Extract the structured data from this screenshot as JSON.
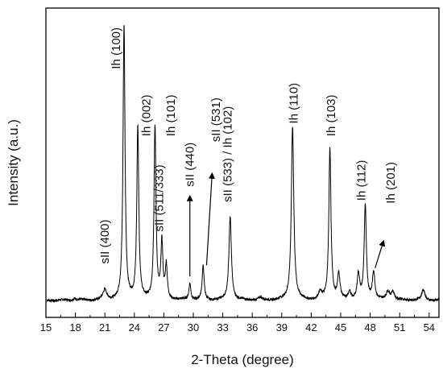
{
  "chart_data": {
    "type": "line",
    "xlabel": "2-Theta (degree)",
    "ylabel": "Intensity (a.u.)",
    "xlim": [
      15,
      55
    ],
    "ylim": [
      0,
      100
    ],
    "x_ticks": [
      15,
      18,
      21,
      24,
      27,
      30,
      33,
      36,
      39,
      42,
      45,
      48,
      51,
      54
    ],
    "y_ticks_shown": false,
    "line_color": "#000000",
    "baseline": 1.5,
    "peaks": [
      {
        "x": 17.9,
        "height": 0.8,
        "width": 0.15
      },
      {
        "x": 21.0,
        "height": 3.5,
        "width": 0.22
      },
      {
        "x": 22.95,
        "height": 98.0,
        "width": 0.12
      },
      {
        "x": 24.35,
        "height": 62.0,
        "width": 0.12
      },
      {
        "x": 26.1,
        "height": 62.0,
        "width": 0.12
      },
      {
        "x": 26.8,
        "height": 20.0,
        "width": 0.12
      },
      {
        "x": 27.25,
        "height": 12.0,
        "width": 0.12
      },
      {
        "x": 29.65,
        "height": 6.0,
        "width": 0.12
      },
      {
        "x": 31.0,
        "height": 12.0,
        "width": 0.12
      },
      {
        "x": 33.75,
        "height": 30.0,
        "width": 0.15
      },
      {
        "x": 36.8,
        "height": 0.8,
        "width": 0.2
      },
      {
        "x": 40.1,
        "height": 62.0,
        "width": 0.15
      },
      {
        "x": 42.9,
        "height": 2.5,
        "width": 0.2
      },
      {
        "x": 43.9,
        "height": 54.0,
        "width": 0.13
      },
      {
        "x": 44.8,
        "height": 9.0,
        "width": 0.15
      },
      {
        "x": 45.9,
        "height": 3.0,
        "width": 0.15
      },
      {
        "x": 46.8,
        "height": 9.0,
        "width": 0.15
      },
      {
        "x": 47.5,
        "height": 34.0,
        "width": 0.13
      },
      {
        "x": 48.35,
        "height": 10.0,
        "width": 0.15
      },
      {
        "x": 49.8,
        "height": 3.0,
        "width": 0.2
      },
      {
        "x": 50.3,
        "height": 3.0,
        "width": 0.2
      },
      {
        "x": 53.4,
        "height": 3.5,
        "width": 0.2
      }
    ],
    "annotations": [
      {
        "text": "sII (400)",
        "x": 21.0,
        "y": 14.5,
        "rotate": -90
      },
      {
        "text": "Ih (100)",
        "x": 22.15,
        "y": 84.0,
        "rotate": -90
      },
      {
        "text": "Ih (002)",
        "x": 25.2,
        "y": 60.0,
        "rotate": -90
      },
      {
        "text": "Ih (101)",
        "x": 27.7,
        "y": 60.0,
        "rotate": -90
      },
      {
        "text": "sII (511/333)",
        "x": 26.5,
        "y": 26.0,
        "rotate": -90
      },
      {
        "text": "sII (440)",
        "x": 29.65,
        "y": 42.0,
        "rotate": -90
      },
      {
        "text": "sII (531)",
        "x": 32.3,
        "y": 58.0,
        "rotate": -90
      },
      {
        "text": "sII (533) / Ih (102)",
        "x": 33.5,
        "y": 36.5,
        "rotate": -90
      },
      {
        "text": "Ih (110)",
        "x": 40.2,
        "y": 64.5,
        "rotate": -90
      },
      {
        "text": "Ih (103)",
        "x": 44.0,
        "y": 60.0,
        "rotate": -90
      },
      {
        "text": "Ih (112)",
        "x": 47.1,
        "y": 37.0,
        "rotate": -90
      },
      {
        "text": "Ih (201)",
        "x": 50.1,
        "y": 36.0,
        "rotate": -90
      }
    ],
    "arrows": [
      {
        "from": [
          29.65,
          10.0
        ],
        "to": [
          29.65,
          38.0
        ]
      },
      {
        "from": [
          31.35,
          14.0
        ],
        "to": [
          31.9,
          46.0
        ]
      },
      {
        "from": [
          48.5,
          13.0
        ],
        "to": [
          49.3,
          22.0
        ]
      }
    ]
  }
}
